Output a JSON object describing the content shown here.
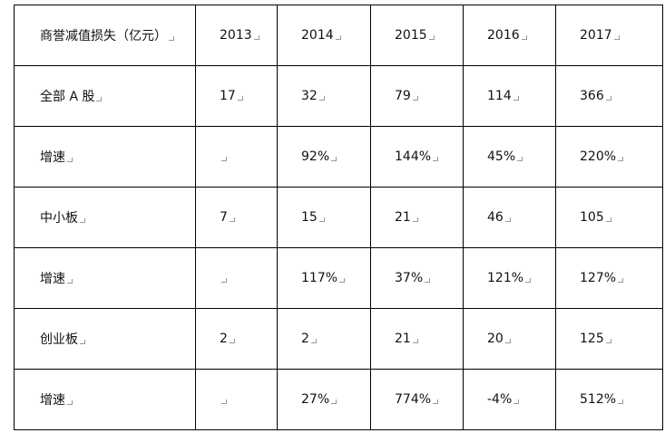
{
  "table": {
    "header": [
      "商誉减值损失（亿元）",
      2013,
      2014,
      2015,
      2016,
      2017
    ],
    "rows": [
      [
        "全部 A 股",
        17,
        32,
        79,
        114,
        366
      ],
      [
        "增速",
        null,
        "92%",
        "144%",
        "45%",
        "220%"
      ],
      [
        "中小板",
        7,
        15,
        21,
        46,
        105
      ],
      [
        "增速",
        null,
        "117%",
        "37%",
        "121%",
        "127%"
      ],
      [
        "创业板",
        2,
        2,
        21,
        20,
        125
      ],
      [
        "增速",
        null,
        "27%",
        "774%",
        "-4%",
        "512%"
      ]
    ]
  }
}
